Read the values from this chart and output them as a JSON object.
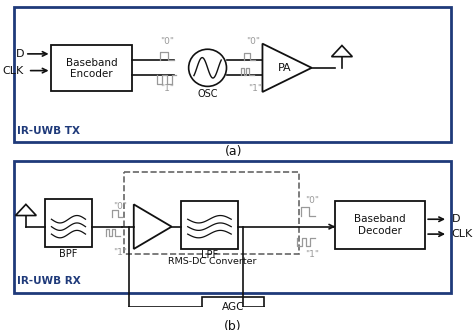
{
  "fig_width": 4.74,
  "fig_height": 3.3,
  "dpi": 100,
  "bg_color": "#ffffff",
  "border_color": "#1f3a7a",
  "signal_color": "#999999",
  "black": "#111111",
  "dash_color": "#666666",
  "tx_label": "IR-UWB TX",
  "rx_label": "IR-UWB RX",
  "caption_a": "(a)",
  "caption_b": "(b)"
}
